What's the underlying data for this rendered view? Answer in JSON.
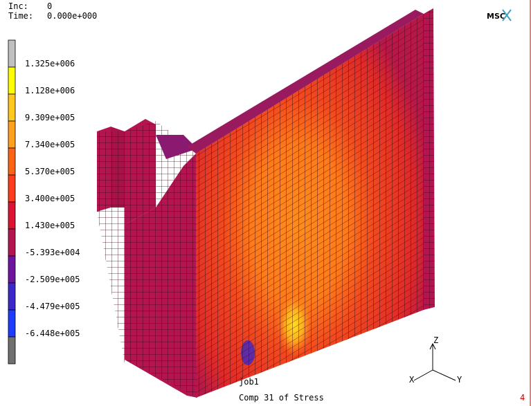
{
  "header": {
    "inc_label": "Inc:",
    "inc_value": "0",
    "time_label": "Time:",
    "time_value": "0.000e+000"
  },
  "logo": "MSC",
  "legend": {
    "labels": [
      "1.325e+006",
      "1.128e+006",
      "9.309e+005",
      "7.340e+005",
      "5.370e+005",
      "3.400e+005",
      "1.430e+005",
      "-5.393e+004",
      "-2.509e+005",
      "-4.479e+005",
      "-6.448e+005"
    ]
  },
  "job": "job1",
  "caption": "Comp 31 of Stress",
  "axes": {
    "z": "Z",
    "x": "X",
    "y": "Y"
  },
  "page_number": "4"
}
